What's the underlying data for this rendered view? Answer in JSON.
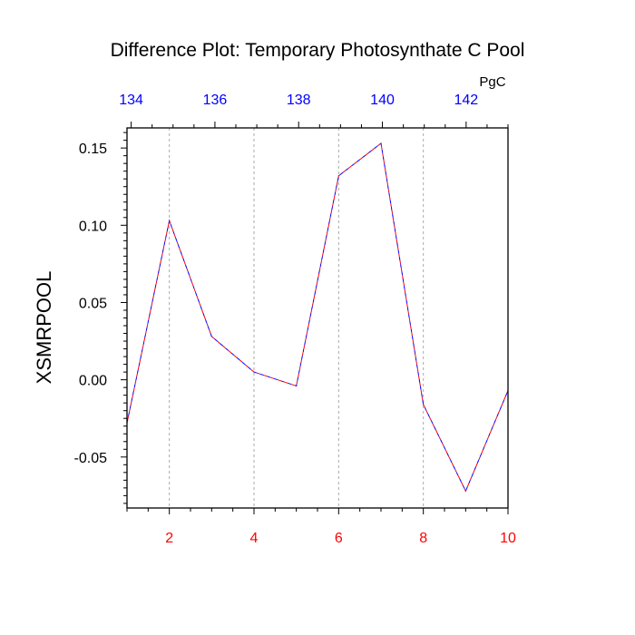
{
  "chart_data": {
    "type": "line",
    "title": "Difference Plot: Temporary Photosynthate C Pool",
    "ylabel": "XSMRPOOL",
    "top_axis_unit": "PgC",
    "x": [
      1,
      2,
      3,
      4,
      5,
      6,
      7,
      8,
      9,
      10
    ],
    "xlim": [
      1,
      10
    ],
    "ylim": [
      -0.083,
      0.163
    ],
    "bottom_ticks": [
      "2",
      "4",
      "6",
      "8",
      "10"
    ],
    "bottom_tick_values": [
      2,
      4,
      6,
      8,
      10
    ],
    "top_ticks": [
      "134",
      "136",
      "138",
      "140",
      "142"
    ],
    "top_tick_values": [
      134,
      136,
      138,
      140,
      142
    ],
    "top_axis_range": [
      133.9,
      143
    ],
    "y_ticks": [
      "0.15",
      "0.10",
      "0.05",
      "0.00",
      "-0.05"
    ],
    "y_tick_values": [
      0.15,
      0.1,
      0.05,
      0.0,
      -0.05
    ],
    "grid": "vertical dashed at bottom ticks",
    "series": [
      {
        "values": [
          -0.028,
          0.103,
          0.028,
          0.005,
          -0.004,
          0.132,
          0.153,
          -0.016,
          -0.072,
          -0.007
        ],
        "colors": [
          "#0000ff",
          "#ff0000"
        ],
        "style": "dashed"
      }
    ],
    "colors": {
      "bottom_tick_labels": "#ff0000",
      "top_tick_labels": "#0000ff",
      "left_tick_labels": "#000000",
      "frame": "#000000",
      "grid": "#aaaaaa"
    }
  }
}
